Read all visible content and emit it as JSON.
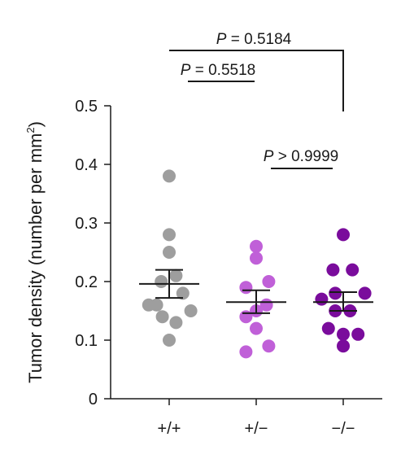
{
  "chart_data": {
    "type": "scatter",
    "ylabel": "Tumor density (number per mm",
    "ylabel_sup": "2",
    "ylabel_close": ")",
    "ylim": [
      0,
      0.5
    ],
    "yticks": [
      {
        "value": 0,
        "label": "0"
      },
      {
        "value": 0.1,
        "label": "0.1"
      },
      {
        "value": 0.2,
        "label": "0.2"
      },
      {
        "value": 0.3,
        "label": "0.3"
      },
      {
        "value": 0.4,
        "label": "0.4"
      },
      {
        "value": 0.5,
        "label": "0.5"
      }
    ],
    "categories": [
      "+/+",
      "+/−",
      "−/−"
    ],
    "colors": {
      "+/+": "#9e9e9e",
      "+/−": "#c060d8",
      "−/−": "#7a0c9c",
      "axis": "#1a1a1a"
    },
    "series": [
      {
        "category": "+/+",
        "points": [
          0.38,
          0.28,
          0.25,
          0.21,
          0.2,
          0.18,
          0.16,
          0.16,
          0.15,
          0.14,
          0.13,
          0.1
        ],
        "offsets": [
          0,
          0,
          0,
          0.3,
          -0.35,
          0.6,
          -0.9,
          -0.55,
          0.95,
          -0.3,
          0.3,
          0
        ],
        "mean": 0.196,
        "sem_low": 0.172,
        "sem_high": 0.22
      },
      {
        "category": "+/−",
        "points": [
          0.26,
          0.24,
          0.2,
          0.19,
          0.16,
          0.15,
          0.14,
          0.12,
          0.09,
          0.08
        ],
        "offsets": [
          0,
          0,
          0.55,
          -0.45,
          0.45,
          0,
          -0.45,
          0,
          0.55,
          -0.45
        ],
        "mean": 0.165,
        "sem_low": 0.146,
        "sem_high": 0.185
      },
      {
        "category": "−/−",
        "points": [
          0.28,
          0.22,
          0.22,
          0.18,
          0.18,
          0.17,
          0.15,
          0.15,
          0.12,
          0.11,
          0.11,
          0.09
        ],
        "offsets": [
          0,
          -0.45,
          0.4,
          0.95,
          -0.35,
          -0.95,
          -0.35,
          0.3,
          -0.65,
          0,
          0.65,
          0
        ],
        "mean": 0.165,
        "sem_low": 0.15,
        "sem_high": 0.182
      }
    ],
    "annotations": [
      {
        "p_label": "P",
        "text": " = 0.5184",
        "from": 0,
        "to": 2
      },
      {
        "p_label": "P",
        "text": " = 0.5518",
        "from": 0,
        "to": 1
      },
      {
        "p_label": "P",
        "text": " > 0.9999",
        "from": 1,
        "to": 2
      }
    ]
  }
}
